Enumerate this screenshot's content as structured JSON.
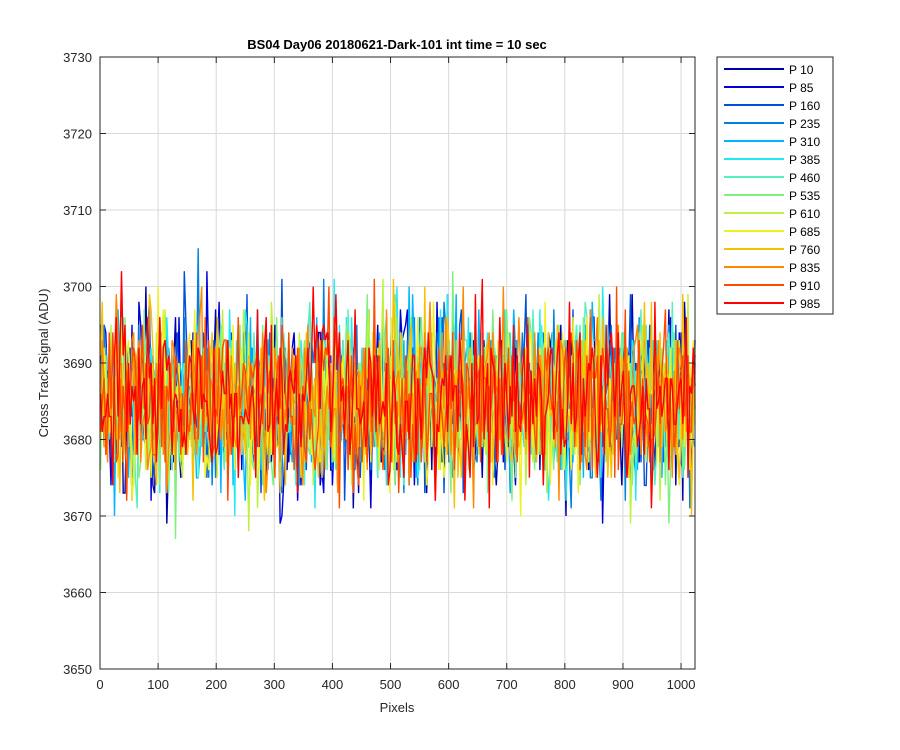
{
  "chart_data": {
    "type": "line",
    "title": "BS04 Day06 20180621-Dark-101 int time = 10 sec",
    "xlabel": "Pixels",
    "ylabel": "Cross Track Signal (ADU)",
    "xlim": [
      0,
      1024
    ],
    "ylim": [
      3650,
      3730
    ],
    "x_ticks": [
      0,
      100,
      200,
      300,
      400,
      500,
      600,
      700,
      800,
      900,
      1000
    ],
    "y_ticks": [
      3650,
      3660,
      3670,
      3680,
      3690,
      3700,
      3710,
      3720,
      3730
    ],
    "grid": true,
    "legend_position": "outside-top-right",
    "signal_center": 3685,
    "noise_spread": 9,
    "series": [
      {
        "name": "P 10",
        "color": "#0000a8"
      },
      {
        "name": "P 85",
        "color": "#0000d6"
      },
      {
        "name": "P 160",
        "color": "#0050d8"
      },
      {
        "name": "P 235",
        "color": "#0080e0"
      },
      {
        "name": "P 310",
        "color": "#00b4ff"
      },
      {
        "name": "P 385",
        "color": "#22e8f0"
      },
      {
        "name": "P 460",
        "color": "#55f0c0"
      },
      {
        "name": "P 535",
        "color": "#7ff07f"
      },
      {
        "name": "P 610",
        "color": "#bff040"
      },
      {
        "name": "P 685",
        "color": "#f0f020"
      },
      {
        "name": "P 760",
        "color": "#f8c000"
      },
      {
        "name": "P 835",
        "color": "#ff8800"
      },
      {
        "name": "P 910",
        "color": "#ff4a00"
      },
      {
        "name": "P 985",
        "color": "#ff0000"
      }
    ]
  }
}
